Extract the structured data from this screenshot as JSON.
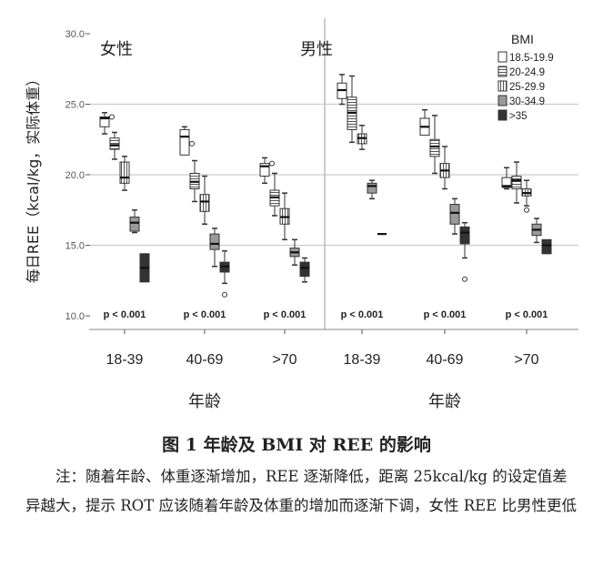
{
  "chart_data": {
    "type": "box",
    "ylabel": "每日REE（kcal/kg，实际体重）",
    "xlabel": "年龄",
    "ylim": [
      10,
      30
    ],
    "yticks": [
      "10.0",
      "15.0",
      "20.0",
      "25.0",
      "30.0"
    ],
    "grid": "horizontal",
    "legend": {
      "title": "BMI",
      "position": "top-right",
      "entries": [
        "18.5-19.9",
        "20-24.9",
        "25-29.9",
        "30-34.9",
        ">35"
      ]
    },
    "categories": [
      "18-39",
      "40-69",
      ">70"
    ],
    "p_values": [
      "p < 0.001",
      "p < 0.001",
      "p < 0.001"
    ],
    "panels": [
      {
        "title": "女性",
        "groups": [
          [
            [
              22.9,
              23.4,
              24.0,
              24.1,
              24.4,
              [
                24.1
              ]
            ],
            [
              21.1,
              21.8,
              22.1,
              22.6,
              23.0,
              []
            ],
            [
              18.9,
              19.4,
              19.8,
              20.9,
              21.3,
              []
            ],
            [
              15.9,
              16.0,
              16.6,
              17.0,
              17.5,
              []
            ],
            [
              12.4,
              12.4,
              13.4,
              14.4,
              14.4,
              []
            ]
          ],
          [
            [
              21.4,
              21.4,
              22.7,
              23.2,
              23.4,
              [
                22.2
              ]
            ],
            [
              18.1,
              19.0,
              19.5,
              20.1,
              21.0,
              []
            ],
            [
              16.5,
              17.4,
              18.1,
              18.6,
              19.9,
              []
            ],
            [
              13.5,
              14.7,
              15.1,
              15.8,
              16.2,
              []
            ],
            [
              12.3,
              13.1,
              13.5,
              13.8,
              14.6,
              [
                11.5
              ]
            ]
          ],
          [
            [
              19.4,
              19.9,
              20.6,
              20.8,
              21.2,
              [
                20.8
              ]
            ],
            [
              17.1,
              17.8,
              18.4,
              18.9,
              20.1,
              []
            ],
            [
              15.4,
              16.5,
              17.0,
              17.6,
              18.7,
              []
            ],
            [
              13.6,
              14.2,
              14.5,
              14.8,
              15.4,
              []
            ],
            [
              12.4,
              12.8,
              13.4,
              13.8,
              14.1,
              []
            ]
          ]
        ]
      },
      {
        "title": "男性",
        "groups": [
          [
            [
              25.0,
              25.4,
              26.0,
              26.5,
              27.1,
              []
            ],
            [
              22.3,
              23.2,
              24.4,
              25.5,
              27.0,
              []
            ],
            [
              21.8,
              22.2,
              22.6,
              22.9,
              23.5,
              []
            ],
            [
              18.3,
              18.7,
              19.2,
              19.4,
              19.6,
              []
            ],
            [
              15.8,
              15.8,
              15.8,
              15.8,
              15.8,
              []
            ]
          ],
          [
            [
              22.8,
              22.8,
              23.4,
              24.0,
              24.6,
              []
            ],
            [
              20.1,
              21.3,
              22.0,
              22.5,
              24.2,
              []
            ],
            [
              19.0,
              19.8,
              20.3,
              20.8,
              22.0,
              []
            ],
            [
              15.8,
              16.5,
              17.3,
              17.9,
              18.3,
              []
            ],
            [
              14.1,
              15.1,
              15.9,
              16.3,
              16.6,
              [
                12.6
              ]
            ]
          ],
          [
            [
              19.0,
              19.1,
              19.2,
              19.8,
              20.5,
              []
            ],
            [
              18.0,
              19.0,
              19.6,
              19.9,
              20.9,
              []
            ],
            [
              17.8,
              18.5,
              18.7,
              19.0,
              19.6,
              [
                17.5
              ]
            ],
            [
              15.2,
              15.7,
              16.1,
              16.5,
              16.9,
              []
            ],
            [
              14.4,
              14.4,
              15.0,
              15.4,
              15.4,
              []
            ]
          ]
        ]
      }
    ]
  },
  "colors": {
    "white": "#ffffff",
    "gray": "#9a9a9a",
    "dark": "#333333",
    "grid": "#cccccc"
  },
  "caption": "图 1 年龄及 BMI 对 REE 的影响",
  "note": "注：随着年龄、体重逐渐增加，REE 逐渐降低，距离 25kcal/kg 的设定值差异越大，提示 ROT 应该随着年龄及体重的增加而逐渐下调，女性 REE 比男性更低"
}
